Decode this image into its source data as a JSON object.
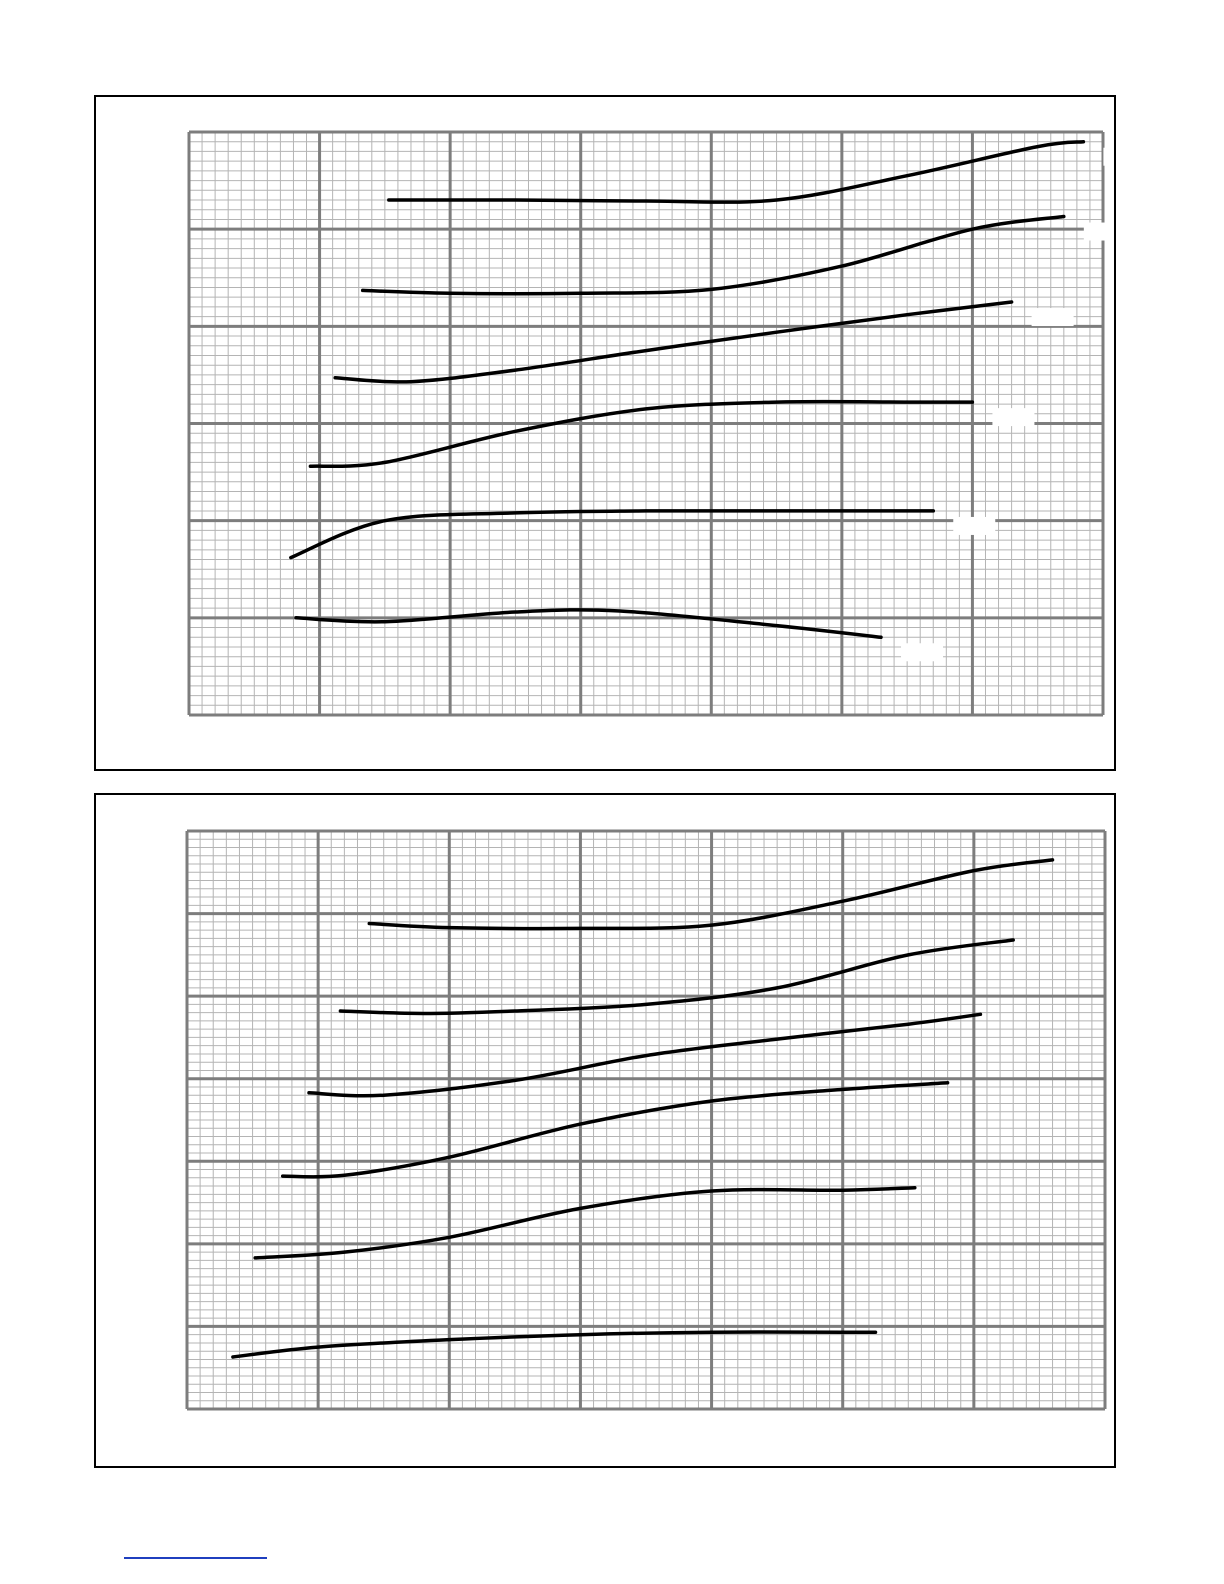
{
  "page": {
    "footer_rule_color": "#1f3fbf"
  },
  "style": {
    "minor_grid": "#b4b4b4",
    "major_grid": "#7d7d7d",
    "curve": "#000000",
    "frame": "#000000",
    "label_box": "#ffffff"
  },
  "chart_data": [
    {
      "type": "line",
      "title": "",
      "xlabel": "",
      "ylabel": "",
      "xlim": [
        0,
        7
      ],
      "ylim": [
        0,
        6
      ],
      "grid": true,
      "minor_divisions": 10,
      "series": [
        {
          "x": [
            1.53,
            2.5,
            3.5,
            4.5,
            5.5,
            6.5,
            6.85
          ],
          "y": [
            5.3,
            5.3,
            5.29,
            5.3,
            5.55,
            5.85,
            5.9
          ]
        },
        {
          "x": [
            1.33,
            2.0,
            3.0,
            4.0,
            5.0,
            6.0,
            6.7
          ],
          "y": [
            4.37,
            4.34,
            4.34,
            4.38,
            4.62,
            5.0,
            5.13
          ]
        },
        {
          "x": [
            1.12,
            1.7,
            2.5,
            3.5,
            4.5,
            5.5,
            6.3
          ],
          "y": [
            3.47,
            3.43,
            3.55,
            3.75,
            3.94,
            4.12,
            4.25
          ]
        },
        {
          "x": [
            0.93,
            1.5,
            2.5,
            3.5,
            4.5,
            5.5,
            6.0
          ],
          "y": [
            2.56,
            2.6,
            2.92,
            3.15,
            3.22,
            3.22,
            3.22
          ]
        },
        {
          "x": [
            0.78,
            1.5,
            2.5,
            3.5,
            4.5,
            5.5,
            5.7
          ],
          "y": [
            1.62,
            2.0,
            2.08,
            2.1,
            2.1,
            2.1,
            2.1
          ]
        },
        {
          "x": [
            0.82,
            1.5,
            2.5,
            3.3,
            4.5,
            5.3
          ],
          "y": [
            1.0,
            0.96,
            1.06,
            1.07,
            0.92,
            0.8
          ]
        }
      ]
    },
    {
      "type": "line",
      "title": "",
      "xlabel": "",
      "ylabel": "",
      "xlim": [
        0,
        7
      ],
      "ylim": [
        0,
        7
      ],
      "grid": true,
      "minor_divisions": 10,
      "series": [
        {
          "x": [
            1.39,
            2.0,
            3.0,
            4.0,
            5.0,
            6.0,
            6.6
          ],
          "y": [
            5.88,
            5.83,
            5.82,
            5.86,
            6.15,
            6.52,
            6.65
          ]
        },
        {
          "x": [
            1.17,
            1.8,
            2.5,
            3.5,
            4.5,
            5.5,
            6.3
          ],
          "y": [
            4.82,
            4.79,
            4.82,
            4.9,
            5.1,
            5.5,
            5.68
          ]
        },
        {
          "x": [
            0.93,
            1.5,
            2.5,
            3.5,
            4.5,
            5.5,
            6.05
          ],
          "y": [
            3.83,
            3.8,
            3.98,
            4.28,
            4.48,
            4.66,
            4.78
          ]
        },
        {
          "x": [
            0.73,
            1.2,
            2.0,
            3.0,
            4.0,
            5.0,
            5.8
          ],
          "y": [
            2.82,
            2.83,
            3.05,
            3.45,
            3.73,
            3.87,
            3.95
          ]
        },
        {
          "x": [
            0.52,
            1.2,
            2.0,
            3.0,
            4.0,
            5.0,
            5.55
          ],
          "y": [
            1.83,
            1.9,
            2.08,
            2.43,
            2.64,
            2.65,
            2.68
          ]
        },
        {
          "x": [
            0.35,
            1.0,
            2.0,
            3.0,
            4.0,
            5.0,
            5.25
          ],
          "y": [
            0.63,
            0.75,
            0.84,
            0.9,
            0.93,
            0.93,
            0.93
          ]
        }
      ]
    }
  ]
}
